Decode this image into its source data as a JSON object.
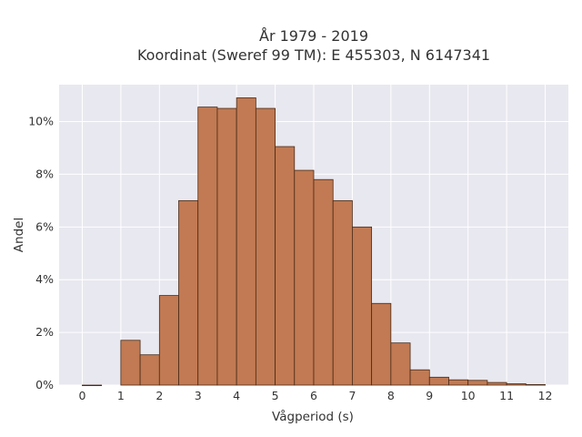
{
  "chart_data": {
    "type": "bar",
    "title": "År 1979 - 2019",
    "subtitle": "Koordinat (Sweref 99 TM): E 455303, N 6147341",
    "xlabel": "Vågperiod (s)",
    "ylabel": "Andel",
    "bin_width": 0.5,
    "bins": [
      {
        "x0": 0.0,
        "value": 0.0
      },
      {
        "x0": 1.0,
        "value": 1.7
      },
      {
        "x0": 1.5,
        "value": 1.15
      },
      {
        "x0": 2.0,
        "value": 3.4
      },
      {
        "x0": 2.5,
        "value": 7.0
      },
      {
        "x0": 3.0,
        "value": 10.55
      },
      {
        "x0": 3.5,
        "value": 10.5
      },
      {
        "x0": 4.0,
        "value": 10.9
      },
      {
        "x0": 4.5,
        "value": 10.5
      },
      {
        "x0": 5.0,
        "value": 9.05
      },
      {
        "x0": 5.5,
        "value": 8.15
      },
      {
        "x0": 6.0,
        "value": 7.8
      },
      {
        "x0": 6.5,
        "value": 7.0
      },
      {
        "x0": 7.0,
        "value": 6.0
      },
      {
        "x0": 7.5,
        "value": 3.1
      },
      {
        "x0": 8.0,
        "value": 1.6
      },
      {
        "x0": 8.5,
        "value": 0.58
      },
      {
        "x0": 9.0,
        "value": 0.3
      },
      {
        "x0": 9.5,
        "value": 0.2
      },
      {
        "x0": 10.0,
        "value": 0.18
      },
      {
        "x0": 10.5,
        "value": 0.1
      },
      {
        "x0": 11.0,
        "value": 0.05
      },
      {
        "x0": 11.5,
        "value": 0.02
      }
    ],
    "xlim": [
      -0.6,
      12.6
    ],
    "ylim": [
      0,
      11.4
    ],
    "xticks": [
      0,
      1,
      2,
      3,
      4,
      5,
      6,
      7,
      8,
      9,
      10,
      11,
      12
    ],
    "yticks": [
      0,
      2,
      4,
      6,
      8,
      10
    ],
    "ytick_labels": [
      "0%",
      "2%",
      "4%",
      "6%",
      "8%",
      "10%"
    ],
    "grid": true,
    "colors": {
      "bar_fill": "#c17a53",
      "bar_edge": "#4a2a17",
      "plot_background": "#e8e8f0",
      "gridline": "#ffffff"
    }
  }
}
